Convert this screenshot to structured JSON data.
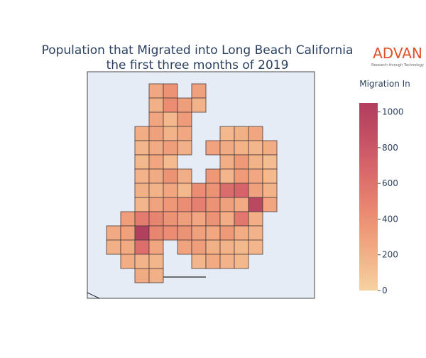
{
  "chart_data": {
    "type": "choropleth",
    "title": [
      "Population that Migrated into Long Beach California",
      "the first three months of 2019"
    ],
    "logo": {
      "name": "ADVAN",
      "tagline": "Research through Technology"
    },
    "colorbar_title": "Migration In",
    "colorscale": [
      "#f6d1a1",
      "#f3b489",
      "#ee9877",
      "#e47d6e",
      "#d5646a",
      "#c24e64",
      "#b13f5e"
    ],
    "clim": [
      0,
      1050
    ],
    "yticks": [
      0,
      200,
      400,
      600,
      800,
      1000
    ],
    "values": [
      250,
      380,
      300,
      200,
      420,
      310,
      180,
      260,
      150,
      330,
      220,
      300,
      180,
      250,
      150,
      200,
      260,
      170,
      240,
      310,
      200,
      280,
      230,
      190,
      160,
      220,
      150,
      260,
      130,
      210,
      340,
      180,
      120,
      190,
      230,
      380,
      210,
      350,
      160,
      330,
      250,
      140,
      200,
      180,
      260,
      150,
      420,
      380,
      640,
      710,
      300,
      180,
      160,
      280,
      350,
      420,
      510,
      380,
      300,
      230,
      950,
      260,
      320,
      540,
      480,
      390,
      310,
      260,
      380,
      220,
      560,
      210,
      240,
      300,
      1050,
      470,
      420,
      380,
      300,
      250,
      340,
      220,
      180,
      200,
      230,
      620,
      260,
      280,
      310,
      200,
      180,
      150,
      170,
      220,
      180,
      160,
      170,
      240,
      190,
      150,
      230,
      200
    ]
  }
}
